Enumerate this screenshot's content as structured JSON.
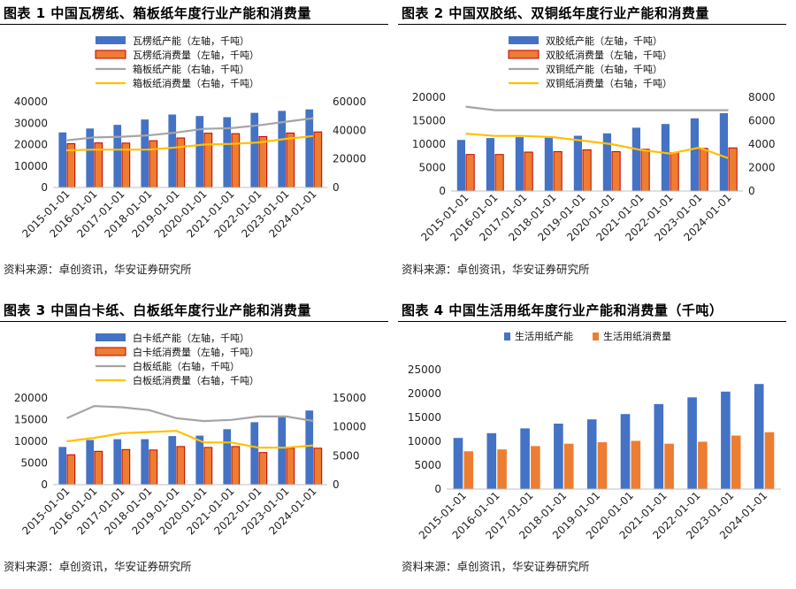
{
  "source_note": "资料来源：卓创资讯，华安证券研究所",
  "colors": {
    "blue": "#4472C4",
    "orange": "#ED7D31",
    "gray": "#A5A5A5",
    "gold": "#FFC000"
  },
  "chart_data": [
    {
      "type": "bar+line",
      "title": "图表 1 中国瓦楞纸、箱板纸年度行业产能和消费量",
      "categories": [
        "2015-01-01",
        "2016-01-01",
        "2017-01-01",
        "2018-01-01",
        "2019-01-01",
        "2020-01-01",
        "2021-01-01",
        "2022-01-01",
        "2023-01-01",
        "2024-01-01"
      ],
      "ylim_left": [
        0,
        40000
      ],
      "yticks_left": [
        0,
        10000,
        20000,
        30000,
        40000
      ],
      "ylim_right": [
        0,
        60000
      ],
      "yticks_right": [
        0,
        20000,
        40000,
        60000
      ],
      "grid": false,
      "legend_position": "top-center",
      "series": [
        {
          "name": "瓦楞纸产能（左轴，千吨）",
          "kind": "bar",
          "axis": "left",
          "color": "#4472C4",
          "values": [
            25700,
            27500,
            29200,
            31700,
            34000,
            33300,
            32800,
            34800,
            35700,
            36400
          ]
        },
        {
          "name": "瓦楞纸消费量（左轴，千吨）",
          "kind": "bar",
          "axis": "left",
          "color": "#ED7D31",
          "values": [
            20400,
            20800,
            20700,
            21800,
            23100,
            25300,
            25100,
            23700,
            25400,
            25900
          ]
        },
        {
          "name": "箱板纸产能（右轴，千吨）",
          "kind": "line",
          "axis": "right",
          "color": "#A5A5A5",
          "values": [
            33000,
            35000,
            35500,
            36500,
            38500,
            41000,
            41500,
            43500,
            46000,
            48500
          ]
        },
        {
          "name": "箱板纸消费量（右轴，千吨）",
          "kind": "line",
          "axis": "right",
          "color": "#FFC000",
          "values": [
            26000,
            26500,
            26500,
            26500,
            28000,
            30000,
            30500,
            31500,
            34000,
            36000
          ]
        }
      ]
    },
    {
      "type": "bar+line",
      "title": "图表 2 中国双胶纸、双铜纸年度行业产能和消费量",
      "categories": [
        "2015-01-01",
        "2016-01-01",
        "2017-01-01",
        "2018-01-01",
        "2019-01-01",
        "2020-01-01",
        "2021-01-01",
        "2022-01-01",
        "2023-01-01",
        "2024-01-01"
      ],
      "ylim_left": [
        0,
        20000
      ],
      "yticks_left": [
        0,
        5000,
        10000,
        15000,
        20000
      ],
      "ylim_right": [
        0,
        8000
      ],
      "yticks_right": [
        0,
        2000,
        4000,
        6000,
        8000
      ],
      "grid": false,
      "legend_position": "top-center",
      "series": [
        {
          "name": "双胶纸产能（左轴，千吨）",
          "kind": "bar",
          "axis": "left",
          "color": "#4472C4",
          "values": [
            10900,
            11300,
            11500,
            11500,
            11800,
            12300,
            13500,
            14300,
            15500,
            16600
          ]
        },
        {
          "name": "双胶纸消费量（左轴，千吨）",
          "kind": "bar",
          "axis": "left",
          "color": "#ED7D31",
          "values": [
            7800,
            7800,
            8300,
            8400,
            8800,
            8400,
            8900,
            8200,
            9100,
            9200
          ]
        },
        {
          "name": "双铜纸产能（右轴，千吨）",
          "kind": "line",
          "axis": "right",
          "color": "#A5A5A5",
          "values": [
            7200,
            6900,
            6900,
            6900,
            6900,
            6900,
            6900,
            6900,
            6900,
            6900
          ]
        },
        {
          "name": "双铜纸消费量（右轴，千吨）",
          "kind": "line",
          "axis": "right",
          "color": "#FFC000",
          "values": [
            4900,
            4700,
            4700,
            4600,
            4300,
            4000,
            3500,
            3200,
            3700,
            2800
          ]
        }
      ]
    },
    {
      "type": "bar+line",
      "title": "图表 3 中国白卡纸、白板纸年度行业产能和消费量",
      "categories": [
        "2015-01-01",
        "2016-01-01",
        "2017-01-01",
        "2018-01-01",
        "2019-01-01",
        "2020-01-01",
        "2021-01-01",
        "2022-01-01",
        "2023-01-01",
        "2024-01-01"
      ],
      "ylim_left": [
        0,
        20000
      ],
      "yticks_left": [
        0,
        5000,
        10000,
        15000,
        20000
      ],
      "ylim_right": [
        0,
        15000
      ],
      "yticks_right": [
        0,
        5000,
        10000,
        15000
      ],
      "grid": false,
      "legend_position": "top-center",
      "series": [
        {
          "name": "白卡纸产能（左轴，千吨）",
          "kind": "bar",
          "axis": "left",
          "color": "#4472C4",
          "values": [
            8700,
            10300,
            10500,
            10500,
            11200,
            11300,
            12800,
            14400,
            15900,
            17100
          ]
        },
        {
          "name": "白卡纸消费量（左轴，千吨）",
          "kind": "bar",
          "axis": "left",
          "color": "#ED7D31",
          "values": [
            6900,
            7700,
            8100,
            8000,
            8800,
            8600,
            8800,
            7400,
            8400,
            8400
          ]
        },
        {
          "name": "白板纸能（右轴，千吨）",
          "kind": "line",
          "axis": "right",
          "color": "#A5A5A5",
          "values": [
            11500,
            13600,
            13400,
            12900,
            11500,
            11000,
            11200,
            11800,
            11800,
            11000
          ]
        },
        {
          "name": "白板纸消费量（右轴，千吨）",
          "kind": "line",
          "axis": "right",
          "color": "#FFC000",
          "values": [
            7500,
            8100,
            8900,
            9100,
            9300,
            7300,
            7300,
            6400,
            6400,
            6800
          ]
        }
      ]
    },
    {
      "type": "bar",
      "title": "图表 4 中国生活用纸年度行业产能和消费量（千吨）",
      "categories": [
        "2015-01-01",
        "2016-01-01",
        "2017-01-01",
        "2018-01-01",
        "2019-01-01",
        "2020-01-01",
        "2021-01-01",
        "2022-01-01",
        "2023-01-01",
        "2024-01-01"
      ],
      "ylim_left": [
        0,
        25000
      ],
      "yticks_left": [
        0,
        5000,
        10000,
        15000,
        20000,
        25000
      ],
      "grid": false,
      "legend_position": "top-center",
      "series": [
        {
          "name": "生活用纸产能",
          "kind": "bar",
          "axis": "left",
          "color": "#4472C4",
          "values": [
            10700,
            11700,
            12700,
            13700,
            14600,
            15700,
            17800,
            19200,
            20400,
            22000
          ]
        },
        {
          "name": "生活用纸消费量",
          "kind": "bar",
          "axis": "left",
          "color": "#ED7D31",
          "values": [
            7900,
            8300,
            9000,
            9500,
            9800,
            10100,
            9500,
            9900,
            11200,
            11900
          ]
        }
      ]
    }
  ]
}
